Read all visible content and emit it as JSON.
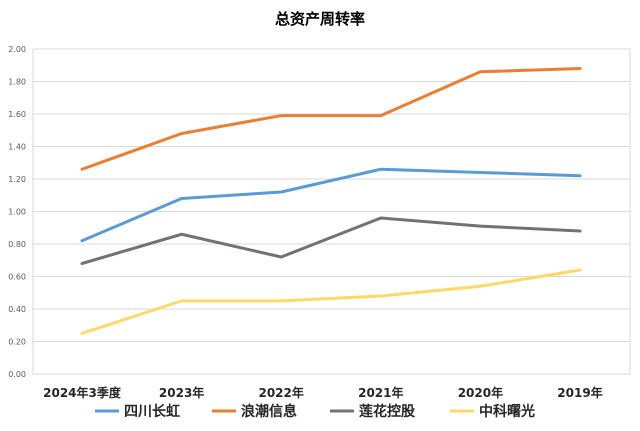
{
  "chart_data": {
    "type": "line",
    "title": "总资产周转率",
    "xlabel": "",
    "ylabel": "",
    "categories": [
      "2024年3季度",
      "2023年",
      "2022年",
      "2021年",
      "2020年",
      "2019年"
    ],
    "ylim": [
      0,
      2
    ],
    "yticks": [
      "0.00",
      "0.20",
      "0.40",
      "0.60",
      "0.80",
      "1.00",
      "1.20",
      "1.40",
      "1.60",
      "1.80",
      "2.00"
    ],
    "grid": true,
    "legend": "bottom",
    "series": [
      {
        "name": "四川长虹",
        "color": "#5B9BD5",
        "values": [
          0.82,
          1.08,
          1.12,
          1.26,
          1.24,
          1.22
        ]
      },
      {
        "name": "浪潮信息",
        "color": "#ED7D31",
        "values": [
          1.26,
          1.48,
          1.59,
          1.59,
          1.86,
          1.88
        ]
      },
      {
        "name": "莲花控股",
        "color": "#767171",
        "values": [
          0.68,
          0.86,
          0.72,
          0.96,
          0.91,
          0.88
        ]
      },
      {
        "name": "中科曙光",
        "color": "#FFD966",
        "values": [
          0.25,
          0.45,
          0.45,
          0.48,
          0.54,
          0.64
        ]
      }
    ]
  }
}
